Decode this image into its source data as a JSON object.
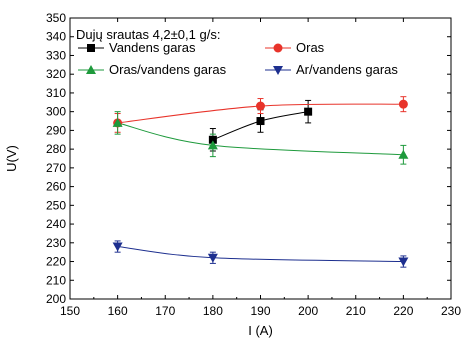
{
  "chart_data": {
    "type": "line",
    "title": "",
    "legend_title": "Dujų srautas 4,2±0,1 g/s:",
    "legend_position": "top",
    "xlabel": "I (A)",
    "ylabel": "U(V)",
    "xlim": [
      150,
      230
    ],
    "ylim": [
      200,
      350
    ],
    "xticks": [
      "150",
      "160",
      "170",
      "180",
      "190",
      "200",
      "210",
      "220",
      "230"
    ],
    "yticks": [
      "200",
      "210",
      "220",
      "230",
      "240",
      "250",
      "260",
      "270",
      "280",
      "290",
      "300",
      "310",
      "320",
      "330",
      "340",
      "350"
    ],
    "grid": false,
    "series": [
      {
        "name": "Vandens garas",
        "color": "#000000",
        "marker": "square",
        "x": [
          180,
          190,
          200
        ],
        "y": [
          285,
          295,
          300
        ],
        "err": [
          6,
          6,
          6
        ]
      },
      {
        "name": "Oras",
        "color": "#e8332a",
        "marker": "circle",
        "x": [
          160,
          190,
          220
        ],
        "y": [
          294,
          303,
          304
        ],
        "err": [
          5,
          4,
          4
        ]
      },
      {
        "name": "Oras/vandens garas",
        "color": "#1e9a3c",
        "marker": "triangle-up",
        "x": [
          160,
          180,
          220
        ],
        "y": [
          294,
          282,
          277
        ],
        "err": [
          6,
          6,
          5
        ]
      },
      {
        "name": "Ar/vandens garas",
        "color": "#1d2f8f",
        "marker": "triangle-down",
        "x": [
          160,
          180,
          220
        ],
        "y": [
          228,
          222,
          220
        ],
        "err": [
          3,
          3,
          3
        ]
      }
    ]
  }
}
